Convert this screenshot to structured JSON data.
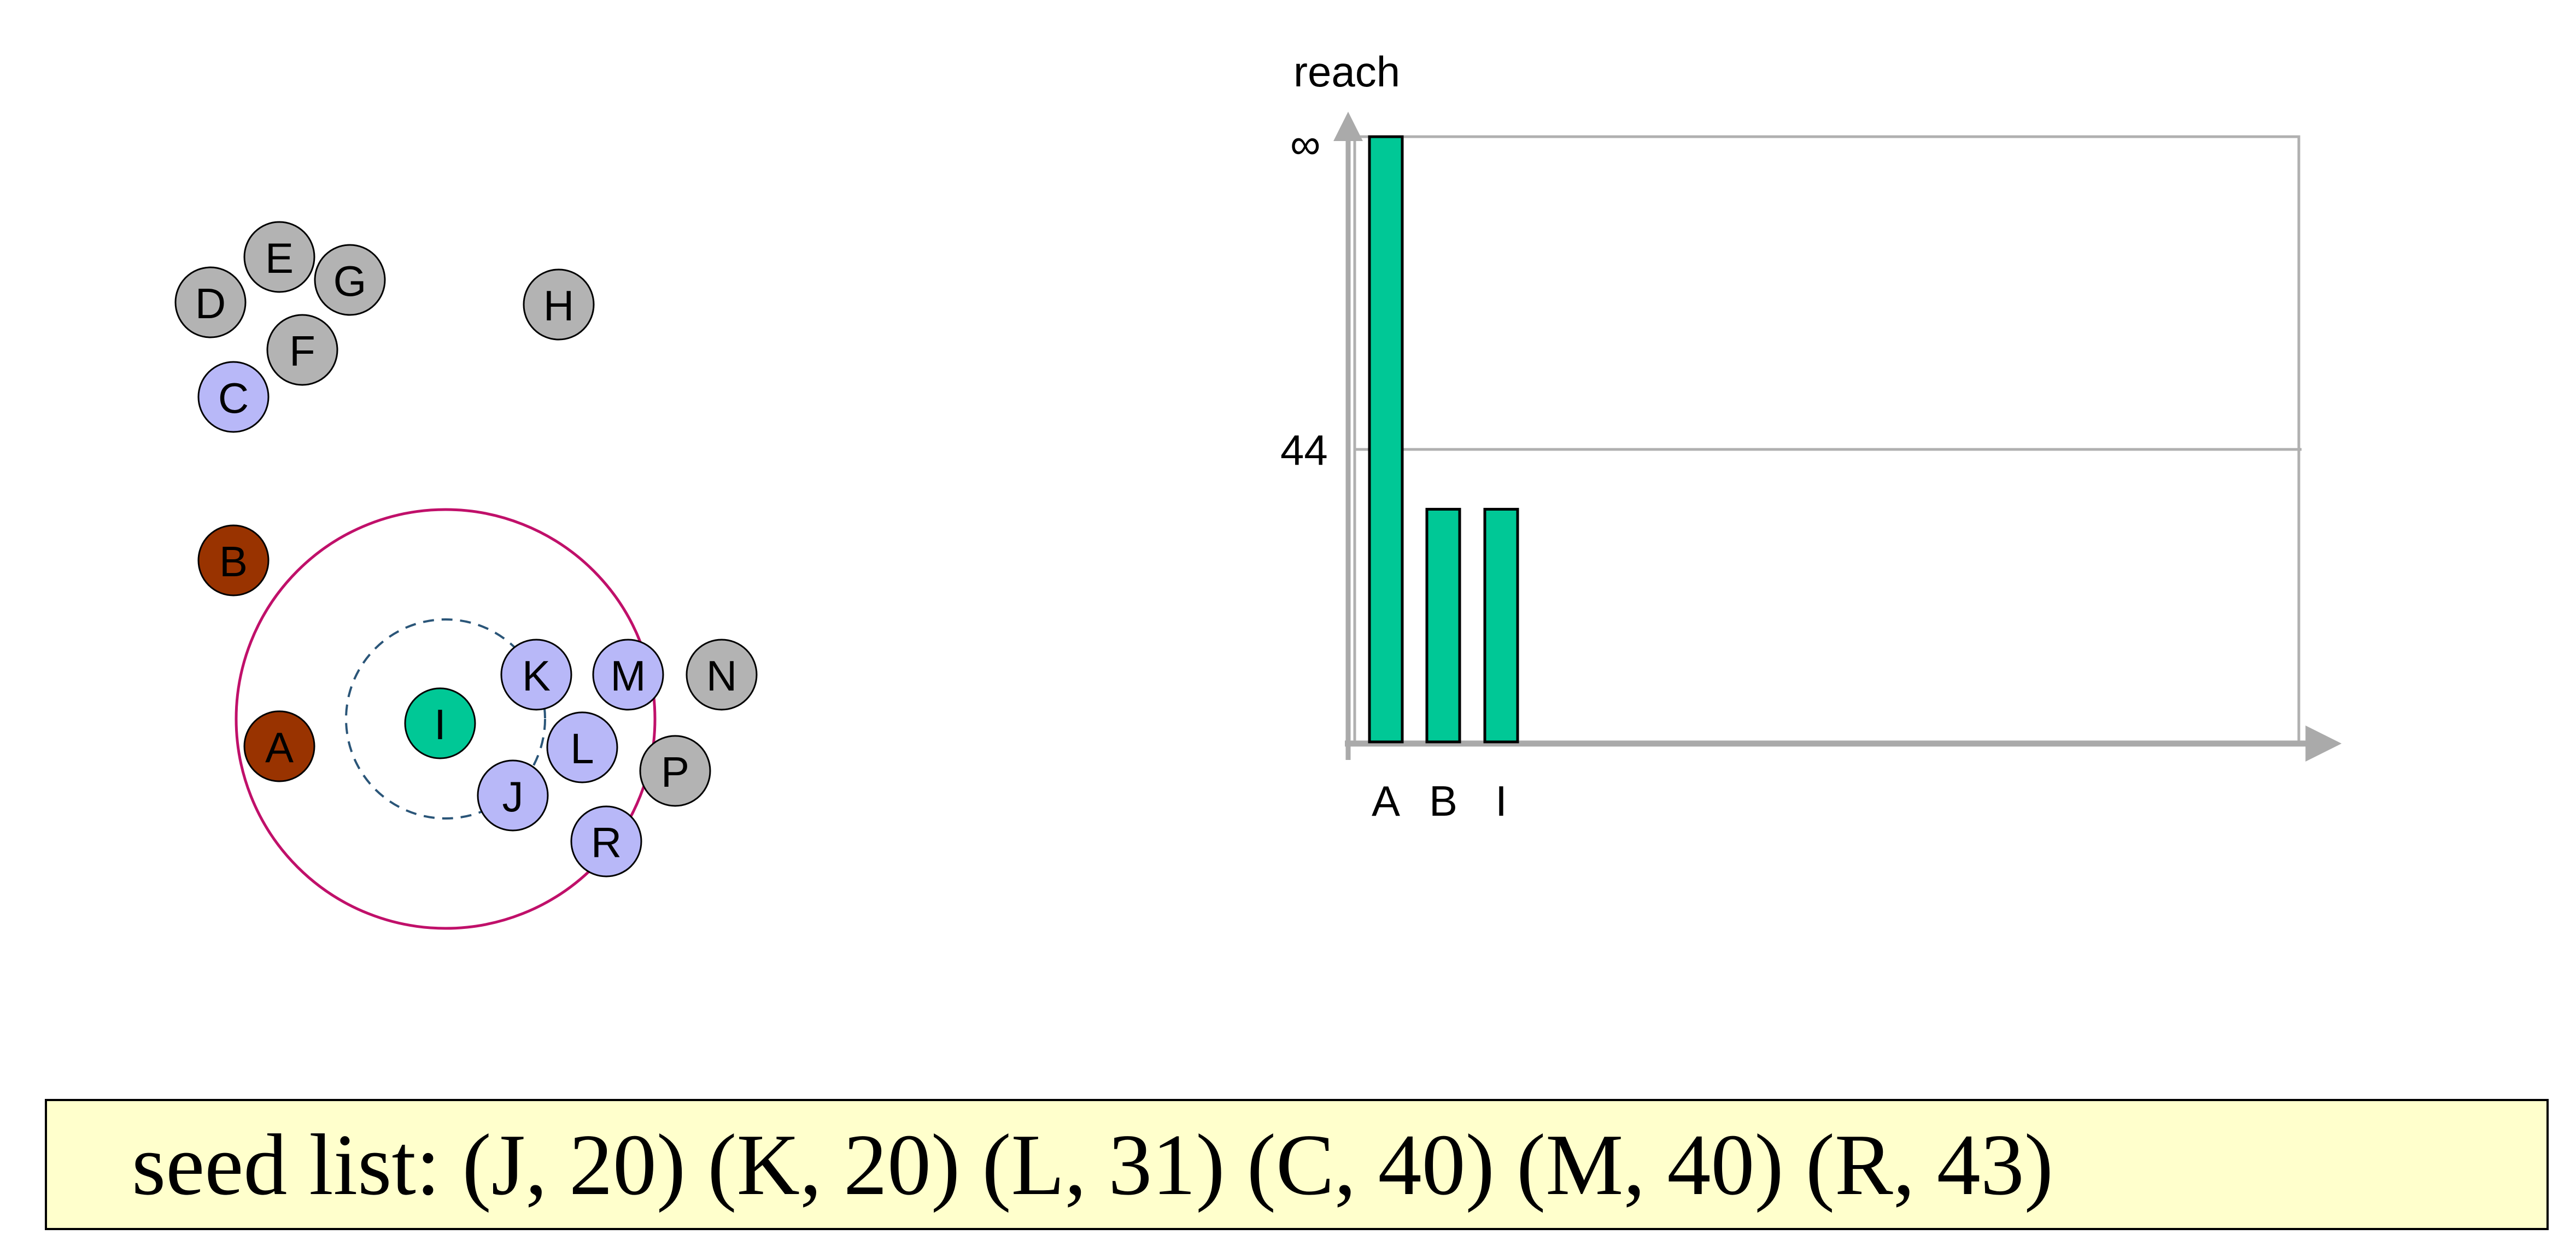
{
  "colors": {
    "unprocessed": "#b3b3b3",
    "seed": "#b8b8f8",
    "processed": "#993300",
    "current": "#00c896",
    "eps_circle": "#c0106a",
    "core_circle": "#2a5578",
    "bar": "#00c896",
    "grid": "#b0b0b0",
    "axis": "#aaaaaa",
    "seed_box_bg": "#ffffcc"
  },
  "nodes": [
    {
      "id": "E",
      "label": "E",
      "state": "unprocessed"
    },
    {
      "id": "G",
      "label": "G",
      "state": "unprocessed"
    },
    {
      "id": "D",
      "label": "D",
      "state": "unprocessed"
    },
    {
      "id": "F",
      "label": "F",
      "state": "unprocessed"
    },
    {
      "id": "C",
      "label": "C",
      "state": "seed"
    },
    {
      "id": "H",
      "label": "H",
      "state": "unprocessed"
    },
    {
      "id": "B",
      "label": "B",
      "state": "processed"
    },
    {
      "id": "K",
      "label": "K",
      "state": "seed"
    },
    {
      "id": "M",
      "label": "M",
      "state": "seed"
    },
    {
      "id": "N",
      "label": "N",
      "state": "unprocessed"
    },
    {
      "id": "I",
      "label": "I",
      "state": "current"
    },
    {
      "id": "L",
      "label": "L",
      "state": "seed"
    },
    {
      "id": "A",
      "label": "A",
      "state": "processed"
    },
    {
      "id": "P",
      "label": "P",
      "state": "unprocessed"
    },
    {
      "id": "J",
      "label": "J",
      "state": "seed"
    },
    {
      "id": "R",
      "label": "R",
      "state": "seed"
    }
  ],
  "chart_data": {
    "type": "bar",
    "ylabel": "reach",
    "y_ticks": [
      "∞",
      "44"
    ],
    "categories": [
      "A",
      "B",
      "I"
    ],
    "values": [
      "∞",
      35,
      35
    ],
    "grid": true
  },
  "seed_list": {
    "text": "seed list: (J, 20) (K, 20) (L, 31) (C, 40) (M, 40) (R, 43)"
  }
}
